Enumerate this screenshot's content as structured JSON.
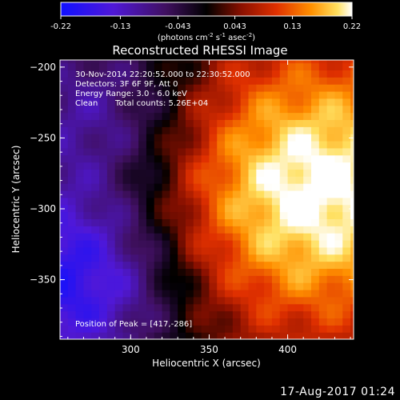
{
  "colorbar": {
    "tick_labels": [
      "-0.22",
      "-0.13",
      "-0.043",
      "0.043",
      "0.13",
      "0.22"
    ],
    "tick_values": [
      -0.22,
      -0.13,
      -0.043,
      0.043,
      0.13,
      0.22
    ],
    "range": [
      -0.22,
      0.22
    ],
    "units_main": "(photons cm",
    "units_sup1": "-2",
    "units_mid1": " s",
    "units_sup2": "-1",
    "units_mid2": " asec",
    "units_sup3": "-2",
    "units_end": ")"
  },
  "chart_data": {
    "type": "heatmap",
    "title": "Reconstructed RHESSI Image",
    "xlabel": "Heliocentric X (arcsec)",
    "ylabel": "Heliocentric Y (arcsec)",
    "xlim": [
      255,
      442
    ],
    "ylim": [
      -392,
      -195
    ],
    "x_ticks": [
      300,
      350,
      400
    ],
    "x_tick_labels": [
      "300",
      "350",
      "400"
    ],
    "y_ticks": [
      -200,
      -250,
      -300,
      -350
    ],
    "y_tick_labels": [
      "−200",
      "−250",
      "−300",
      "−350"
    ],
    "colormap": "hot-bipolar (blue-purple negative, black zero, red-orange-yellow-white positive)",
    "peak_position": [
      417,
      -286
    ],
    "annotations": [
      "30-Nov-2014 22:20:52.000 to 22:30:52.000",
      "Detectors: 3F 6F 9F, Att 0",
      "Energy Range: 3.0 - 6.0 keV",
      "Clean",
      "Total counts: 5.26E+04",
      "Position of Peak = [417,-286]"
    ]
  },
  "footer_date": "17-Aug-2017 01:24"
}
